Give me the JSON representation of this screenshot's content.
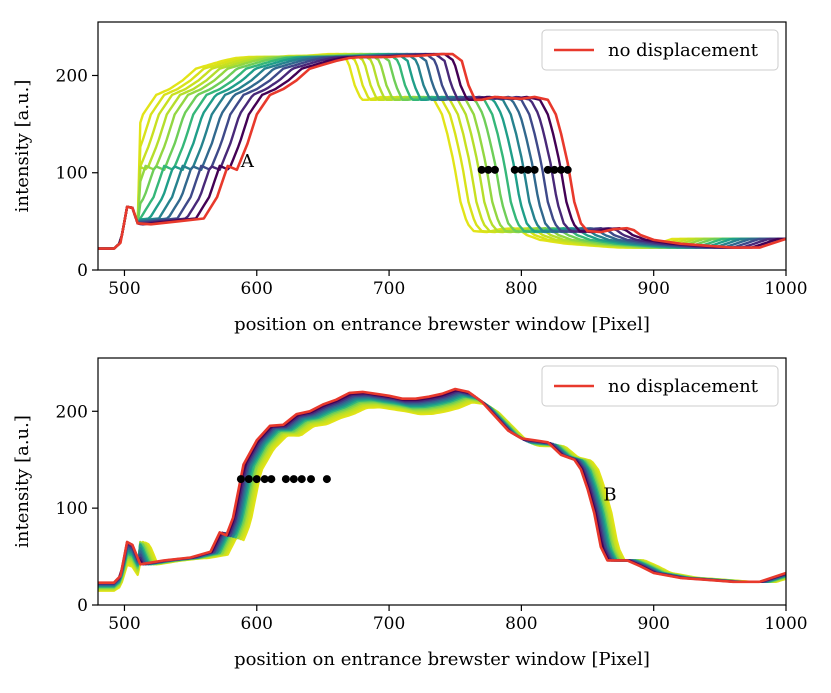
{
  "chart_data": [
    {
      "type": "line",
      "xlabel": "position on entrance brewster window [Pixel]",
      "ylabel": "intensity [a.u.]",
      "xlim": [
        480,
        1000
      ],
      "ylim": [
        0,
        255
      ],
      "xticks": [
        500,
        600,
        700,
        800,
        900,
        1000
      ],
      "yticks": [
        0,
        100,
        200
      ],
      "grid": false,
      "legend": {
        "placement": "top-right",
        "entries": [
          "no displacement"
        ]
      },
      "reference_series": {
        "name": "no displacement",
        "color": "#e8392c",
        "x": [
          480,
          492,
          497,
          502,
          506,
          510,
          520,
          540,
          560,
          570,
          578,
          585,
          593,
          600,
          610,
          620,
          630,
          640,
          650,
          660,
          670,
          680,
          690,
          700,
          710,
          720,
          730,
          740,
          748,
          755,
          760,
          765,
          770,
          780,
          790,
          800,
          810,
          820,
          826,
          830,
          835,
          840,
          845,
          850,
          860,
          870,
          880,
          885,
          890,
          900,
          920,
          940,
          960,
          980,
          1000
        ],
        "y": [
          22,
          22,
          28,
          65,
          64,
          48,
          47,
          50,
          53,
          75,
          107,
          103,
          130,
          160,
          180,
          186,
          195,
          207,
          211,
          215,
          218,
          219,
          219,
          219,
          220,
          220,
          221,
          222,
          222,
          215,
          190,
          175,
          175,
          178,
          177,
          176,
          178,
          175,
          160,
          140,
          110,
          70,
          48,
          40,
          39,
          42,
          43,
          41,
          36,
          31,
          27,
          25,
          23,
          23,
          32
        ]
      },
      "displaced_series_count": 13,
      "displaced_series_shift": [
        -6,
        -13,
        -20,
        -27,
        -34,
        -41,
        -48,
        -55,
        -62,
        -68,
        -74,
        -80,
        -86
      ],
      "colormap": "viridis",
      "markers": {
        "color": "#000000",
        "x": [
          770,
          775,
          780,
          795,
          800,
          805,
          810,
          820,
          825,
          830,
          835
        ],
        "y": [
          103,
          103,
          103,
          103,
          103,
          103,
          103,
          103,
          103,
          103,
          103
        ]
      },
      "annotations": [
        {
          "text": "A",
          "x": 588,
          "y": 106
        }
      ]
    },
    {
      "type": "line",
      "xlabel": "position on entrance brewster window [Pixel]",
      "ylabel": "intensity [a.u.]",
      "xlim": [
        480,
        1000
      ],
      "ylim": [
        0,
        255
      ],
      "xticks": [
        500,
        600,
        700,
        800,
        900,
        1000
      ],
      "yticks": [
        0,
        100,
        200
      ],
      "grid": false,
      "legend": {
        "placement": "top-right",
        "entries": [
          "no displacement"
        ]
      },
      "reference_series": {
        "name": "no displacement",
        "color": "#e8392c",
        "x": [
          480,
          492,
          497,
          502,
          506,
          512,
          530,
          550,
          565,
          572,
          577,
          582,
          590,
          600,
          610,
          620,
          630,
          640,
          650,
          660,
          670,
          680,
          690,
          700,
          710,
          720,
          730,
          740,
          750,
          760,
          770,
          780,
          790,
          800,
          810,
          820,
          830,
          840,
          845,
          850,
          855,
          860,
          865,
          870,
          880,
          890,
          900,
          920,
          940,
          960,
          980,
          1000
        ],
        "y": [
          23,
          23,
          30,
          65,
          62,
          42,
          46,
          49,
          55,
          75,
          72,
          90,
          145,
          170,
          185,
          186,
          197,
          200,
          207,
          212,
          219,
          220,
          218,
          216,
          213,
          213,
          215,
          218,
          223,
          220,
          210,
          195,
          180,
          172,
          170,
          168,
          155,
          150,
          140,
          120,
          95,
          60,
          46,
          46,
          46,
          40,
          33,
          28,
          26,
          24,
          24,
          33
        ]
      },
      "displaced_series_count": 13,
      "displaced_series_shift": [
        1,
        2,
        3,
        4,
        5,
        6,
        7,
        8,
        9,
        10,
        11,
        12,
        13
      ],
      "colormap": "viridis",
      "markers": {
        "color": "#000000",
        "x": [
          588,
          594,
          600,
          606,
          611,
          622,
          628,
          634,
          641,
          653
        ],
        "y": [
          130,
          130,
          130,
          130,
          130,
          130,
          130,
          130,
          130,
          130
        ]
      },
      "annotations": [
        {
          "text": "B",
          "x": 862,
          "y": 108
        }
      ]
    }
  ]
}
